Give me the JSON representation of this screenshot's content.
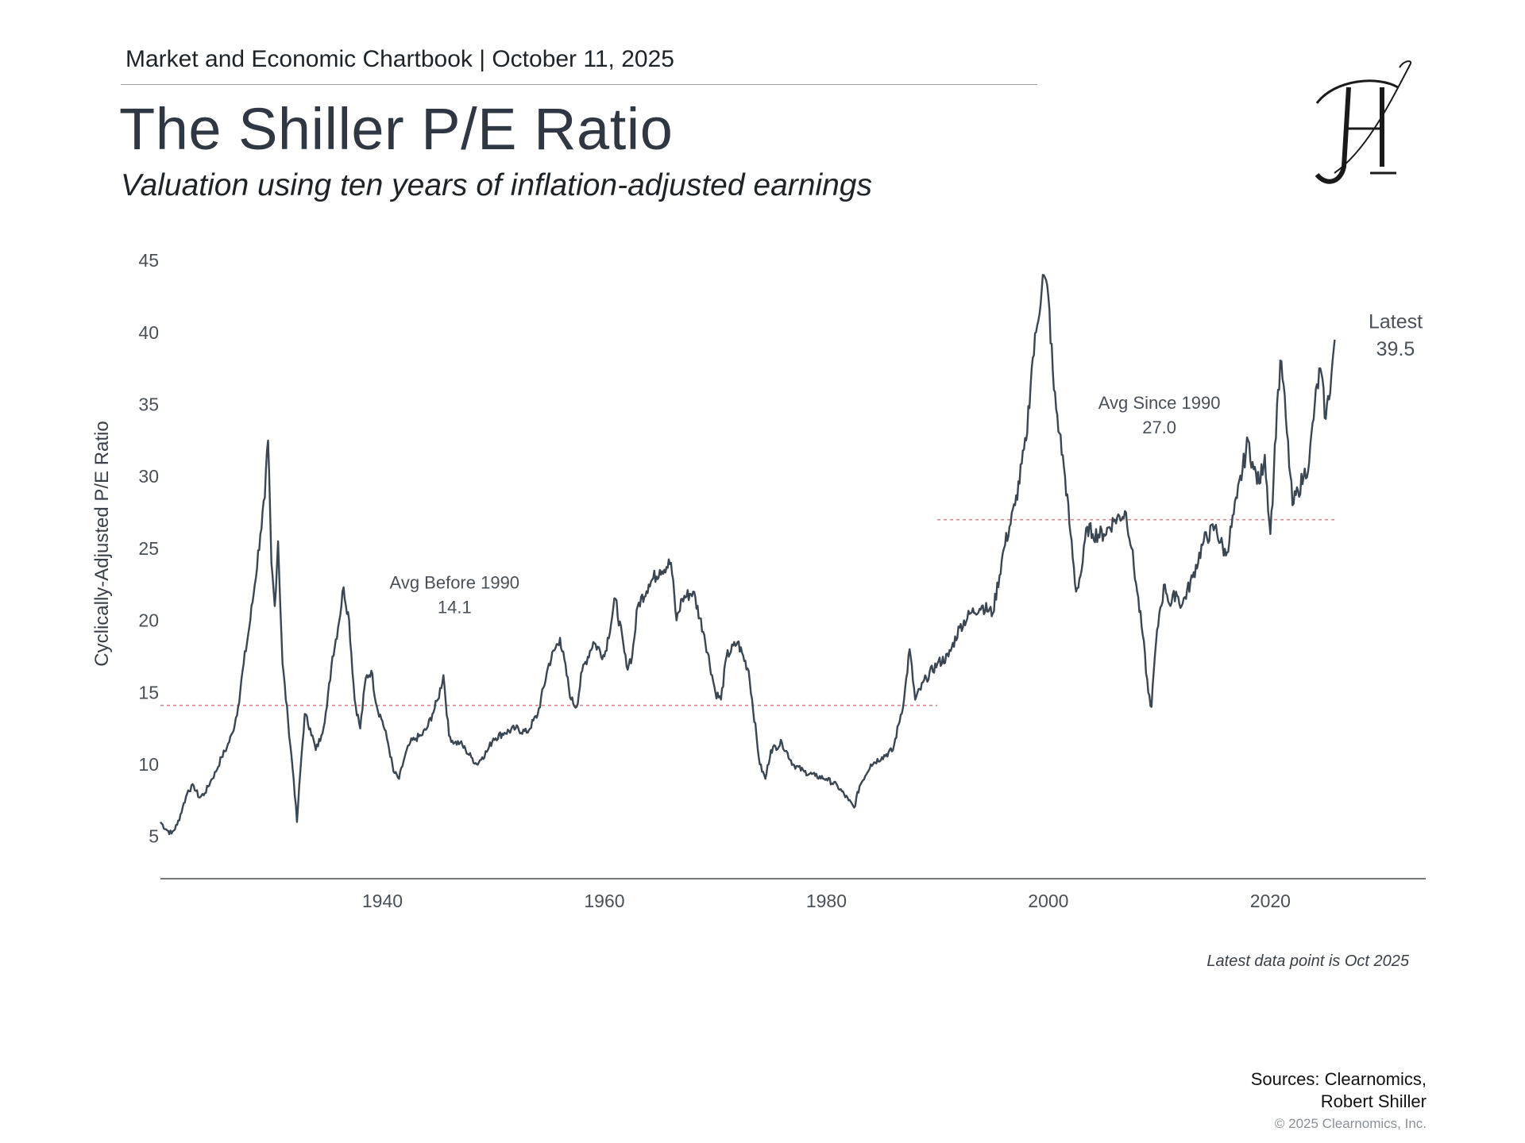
{
  "header": {
    "kicker": "Market and Economic Chartbook | October 11, 2025",
    "title": "The Shiller P/E Ratio",
    "subtitle": "Valuation using ten years of inflation-adjusted earnings"
  },
  "colors": {
    "line": "#3a4651",
    "avg_line": "#d4878f",
    "axis": "#444a50"
  },
  "chart_data": {
    "type": "line",
    "title": "The Shiller P/E Ratio",
    "subtitle": "Valuation using ten years of inflation-adjusted earnings",
    "xlabel": "",
    "ylabel": "Cyclically-Adjusted P/E Ratio",
    "xlim": [
      1920,
      2034
    ],
    "ylim": [
      3,
      46
    ],
    "xticks": [
      1940,
      1960,
      1980,
      2000,
      2020
    ],
    "yticks": [
      5,
      10,
      15,
      20,
      25,
      30,
      35,
      40,
      45
    ],
    "grid": false,
    "series": [
      {
        "name": "Shiller CAPE",
        "x": [
          1920,
          1920.5,
          1921,
          1921.5,
          1922,
          1922.5,
          1923,
          1923.5,
          1924,
          1924.5,
          1925,
          1925.5,
          1926,
          1926.5,
          1927,
          1927.5,
          1928,
          1928.5,
          1929,
          1929.4,
          1929.7,
          1930,
          1930.3,
          1930.6,
          1931,
          1931.5,
          1932,
          1932.3,
          1932.6,
          1933,
          1933.5,
          1934,
          1934.5,
          1935,
          1935.5,
          1936,
          1936.5,
          1937,
          1937.5,
          1938,
          1938.5,
          1939,
          1939.5,
          1940,
          1940.5,
          1941,
          1941.5,
          1942,
          1942.5,
          1943,
          1943.5,
          1944,
          1944.5,
          1945,
          1945.5,
          1946,
          1946.5,
          1947,
          1947.5,
          1948,
          1948.5,
          1949,
          1949.5,
          1950,
          1951,
          1952,
          1953,
          1954,
          1955,
          1956,
          1957,
          1957.5,
          1958,
          1959,
          1960,
          1961,
          1962,
          1962.5,
          1963,
          1964,
          1965,
          1966,
          1966.5,
          1967,
          1968,
          1969,
          1970,
          1970.5,
          1971,
          1972,
          1973,
          1974,
          1974.5,
          1975,
          1976,
          1977,
          1978,
          1979,
          1980,
          1981,
          1982,
          1982.5,
          1983,
          1984,
          1985,
          1986,
          1987,
          1987.5,
          1988,
          1989,
          1990,
          1991,
          1992,
          1993,
          1994,
          1995,
          1996,
          1997,
          1998,
          1998.5,
          1999,
          1999.5,
          2000,
          2000.5,
          2001,
          2001.5,
          2002,
          2002.5,
          2003,
          2003.5,
          2004,
          2005,
          2006,
          2007,
          2007.5,
          2008,
          2008.5,
          2009,
          2009.3,
          2009.6,
          2010,
          2010.5,
          2011,
          2011.5,
          2012,
          2013,
          2014,
          2015,
          2016,
          2017,
          2018,
          2018.5,
          2019,
          2019.5,
          2020,
          2020.3,
          2020.6,
          2021,
          2021.5,
          2022,
          2022.5,
          2023,
          2023.5,
          2024,
          2024.5,
          2025,
          2025.5,
          2025.8
        ],
        "values": [
          6.0,
          5.5,
          5.2,
          5.8,
          7.0,
          8.2,
          8.5,
          7.7,
          8.0,
          8.8,
          9.5,
          10.5,
          11.2,
          12.2,
          14.0,
          17.0,
          19.5,
          22.5,
          26.0,
          28.5,
          32.5,
          24.0,
          21.0,
          25.5,
          17.0,
          13.0,
          9.0,
          6.0,
          9.5,
          13.5,
          12.5,
          11.0,
          12.0,
          14.0,
          17.5,
          19.5,
          22.3,
          20.0,
          14.5,
          12.5,
          16.0,
          16.5,
          14.0,
          13.0,
          11.5,
          9.5,
          9.0,
          10.5,
          11.5,
          11.8,
          12.0,
          12.5,
          13.5,
          14.5,
          16.2,
          12.0,
          11.5,
          11.5,
          11.0,
          10.5,
          10.0,
          10.5,
          11.0,
          11.8,
          12.2,
          12.5,
          12.2,
          13.5,
          17.0,
          18.8,
          14.5,
          14.0,
          16.5,
          18.5,
          17.5,
          21.5,
          16.8,
          17.5,
          21.0,
          22.5,
          23.5,
          24.0,
          20.0,
          21.5,
          22.0,
          19.0,
          15.0,
          14.5,
          17.5,
          18.5,
          16.5,
          10.0,
          9.0,
          11.0,
          11.5,
          10.0,
          9.5,
          9.2,
          9.0,
          8.5,
          7.5,
          7.0,
          8.5,
          10.0,
          10.5,
          11.0,
          14.5,
          18.0,
          14.5,
          16.0,
          17.0,
          17.5,
          19.5,
          20.5,
          21.0,
          20.5,
          25.0,
          28.0,
          32.5,
          37.5,
          40.5,
          44.0,
          42.5,
          36.0,
          33.0,
          30.0,
          26.0,
          22.0,
          23.5,
          26.5,
          26.0,
          26.0,
          27.0,
          27.5,
          25.0,
          22.0,
          19.0,
          15.0,
          14.0,
          17.5,
          20.5,
          22.5,
          21.0,
          22.0,
          21.0,
          23.0,
          25.5,
          26.5,
          24.5,
          28.5,
          32.5,
          30.5,
          29.5,
          31.5,
          26.0,
          30.0,
          35.0,
          38.0,
          33.0,
          28.0,
          29.0,
          30.0,
          31.0,
          35.0,
          37.5,
          34.0,
          37.0,
          39.5
        ]
      }
    ],
    "reference_lines": [
      {
        "label": "Avg Before 1990",
        "value": 14.1,
        "value_label": "14.1",
        "x_start": 1920,
        "x_end": 1990
      },
      {
        "label": "Avg Since 1990",
        "value": 27.0,
        "value_label": "27.0",
        "x_start": 1990,
        "x_end": 2025.8
      }
    ],
    "latest": {
      "label": "Latest",
      "value_label": "39.5"
    }
  },
  "footnote": "Latest data point is Oct 2025",
  "sources": {
    "line1": "Sources: Clearnomics,",
    "line2": "Robert Shiller"
  },
  "copyright": "© 2025 Clearnomics, Inc.",
  "logo_icon": "monogram-logo-icon"
}
